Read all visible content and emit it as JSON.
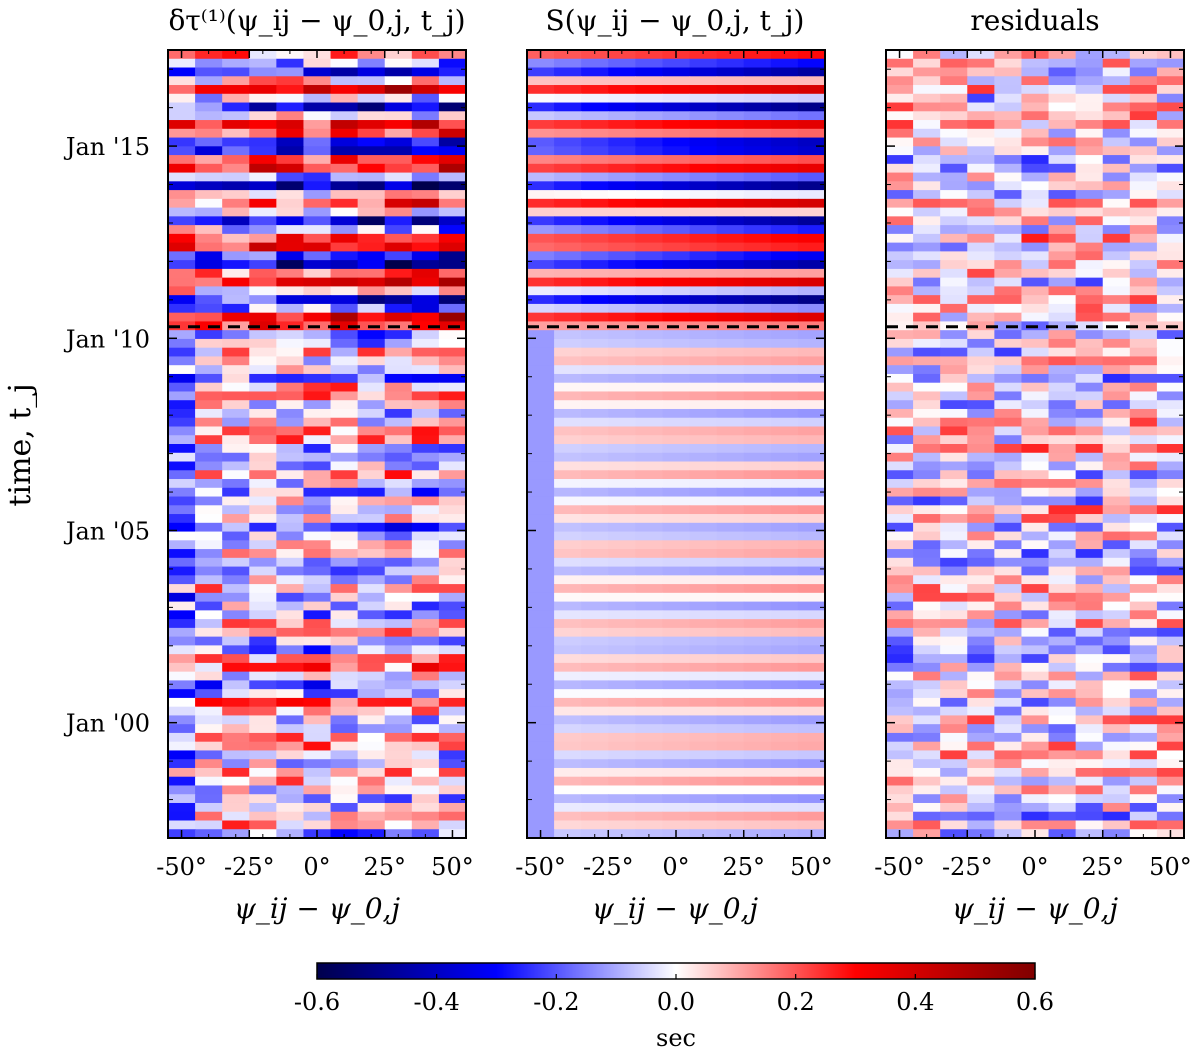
{
  "chart_data": [
    {
      "type": "heatmap",
      "title": "δτ⁽¹⁾(ψ_ij − ψ_0,j, t_j)",
      "xlabel": "ψ_ij − ψ_0,j",
      "ylabel": "time, t_j",
      "xlim": [
        -55,
        55
      ],
      "x_ticks": [
        -50,
        -25,
        0,
        25,
        50
      ],
      "x_tick_labels": [
        "-50°",
        "-25°",
        "0°",
        "25°",
        "50°"
      ],
      "y_range_years": [
        1997.0,
        2017.5
      ],
      "y_ticks": [
        2000,
        2005,
        2010,
        2015
      ],
      "y_tick_labels": [
        "Jan '00",
        "Jan '05",
        "Jan '10",
        "Jan '15"
      ],
      "n_columns": 11,
      "n_rows": 90,
      "dashed_line_year": 2010.3,
      "value_unit": "sec",
      "value_range": [
        -0.6,
        0.6
      ],
      "pattern": "noisy"
    },
    {
      "type": "heatmap",
      "title": "S(ψ_ij − ψ_0,j, t_j)",
      "xlabel": "ψ_ij − ψ_0,j",
      "xlim": [
        -55,
        55
      ],
      "x_ticks": [
        -50,
        -25,
        0,
        25,
        50
      ],
      "x_tick_labels": [
        "-50°",
        "-25°",
        "0°",
        "25°",
        "50°"
      ],
      "y_range_years": [
        1997.0,
        2017.5
      ],
      "n_columns": 11,
      "n_rows": 90,
      "dashed_line_year": 2010.3,
      "value_unit": "sec",
      "value_range": [
        -0.6,
        0.6
      ],
      "pattern": "smooth-seasonal"
    },
    {
      "type": "heatmap",
      "title": "residuals",
      "xlabel": "ψ_ij − ψ_0,j",
      "xlim": [
        -55,
        55
      ],
      "x_ticks": [
        -50,
        -25,
        0,
        25,
        50
      ],
      "x_tick_labels": [
        "-50°",
        "-25°",
        "0°",
        "25°",
        "50°"
      ],
      "y_range_years": [
        1997.0,
        2017.5
      ],
      "n_columns": 11,
      "n_rows": 90,
      "dashed_line_year": 2010.3,
      "value_unit": "sec",
      "value_range": [
        -0.6,
        0.6
      ],
      "pattern": "residual-noise"
    }
  ],
  "colorbar": {
    "label": "sec",
    "min": -0.6,
    "max": 0.6,
    "ticks": [
      -0.6,
      -0.4,
      -0.2,
      0.0,
      0.2,
      0.4,
      0.6
    ],
    "tick_labels": [
      "-0.6",
      "-0.4",
      "-0.2",
      "0.0",
      "0.2",
      "0.4",
      "0.6"
    ],
    "colormap": "seismic"
  },
  "colors": {
    "cold": "#00004c",
    "blue": "#0000ff",
    "white": "#ffffff",
    "red": "#ff0000",
    "hot": "#800000",
    "dashed_line": "#000000"
  }
}
